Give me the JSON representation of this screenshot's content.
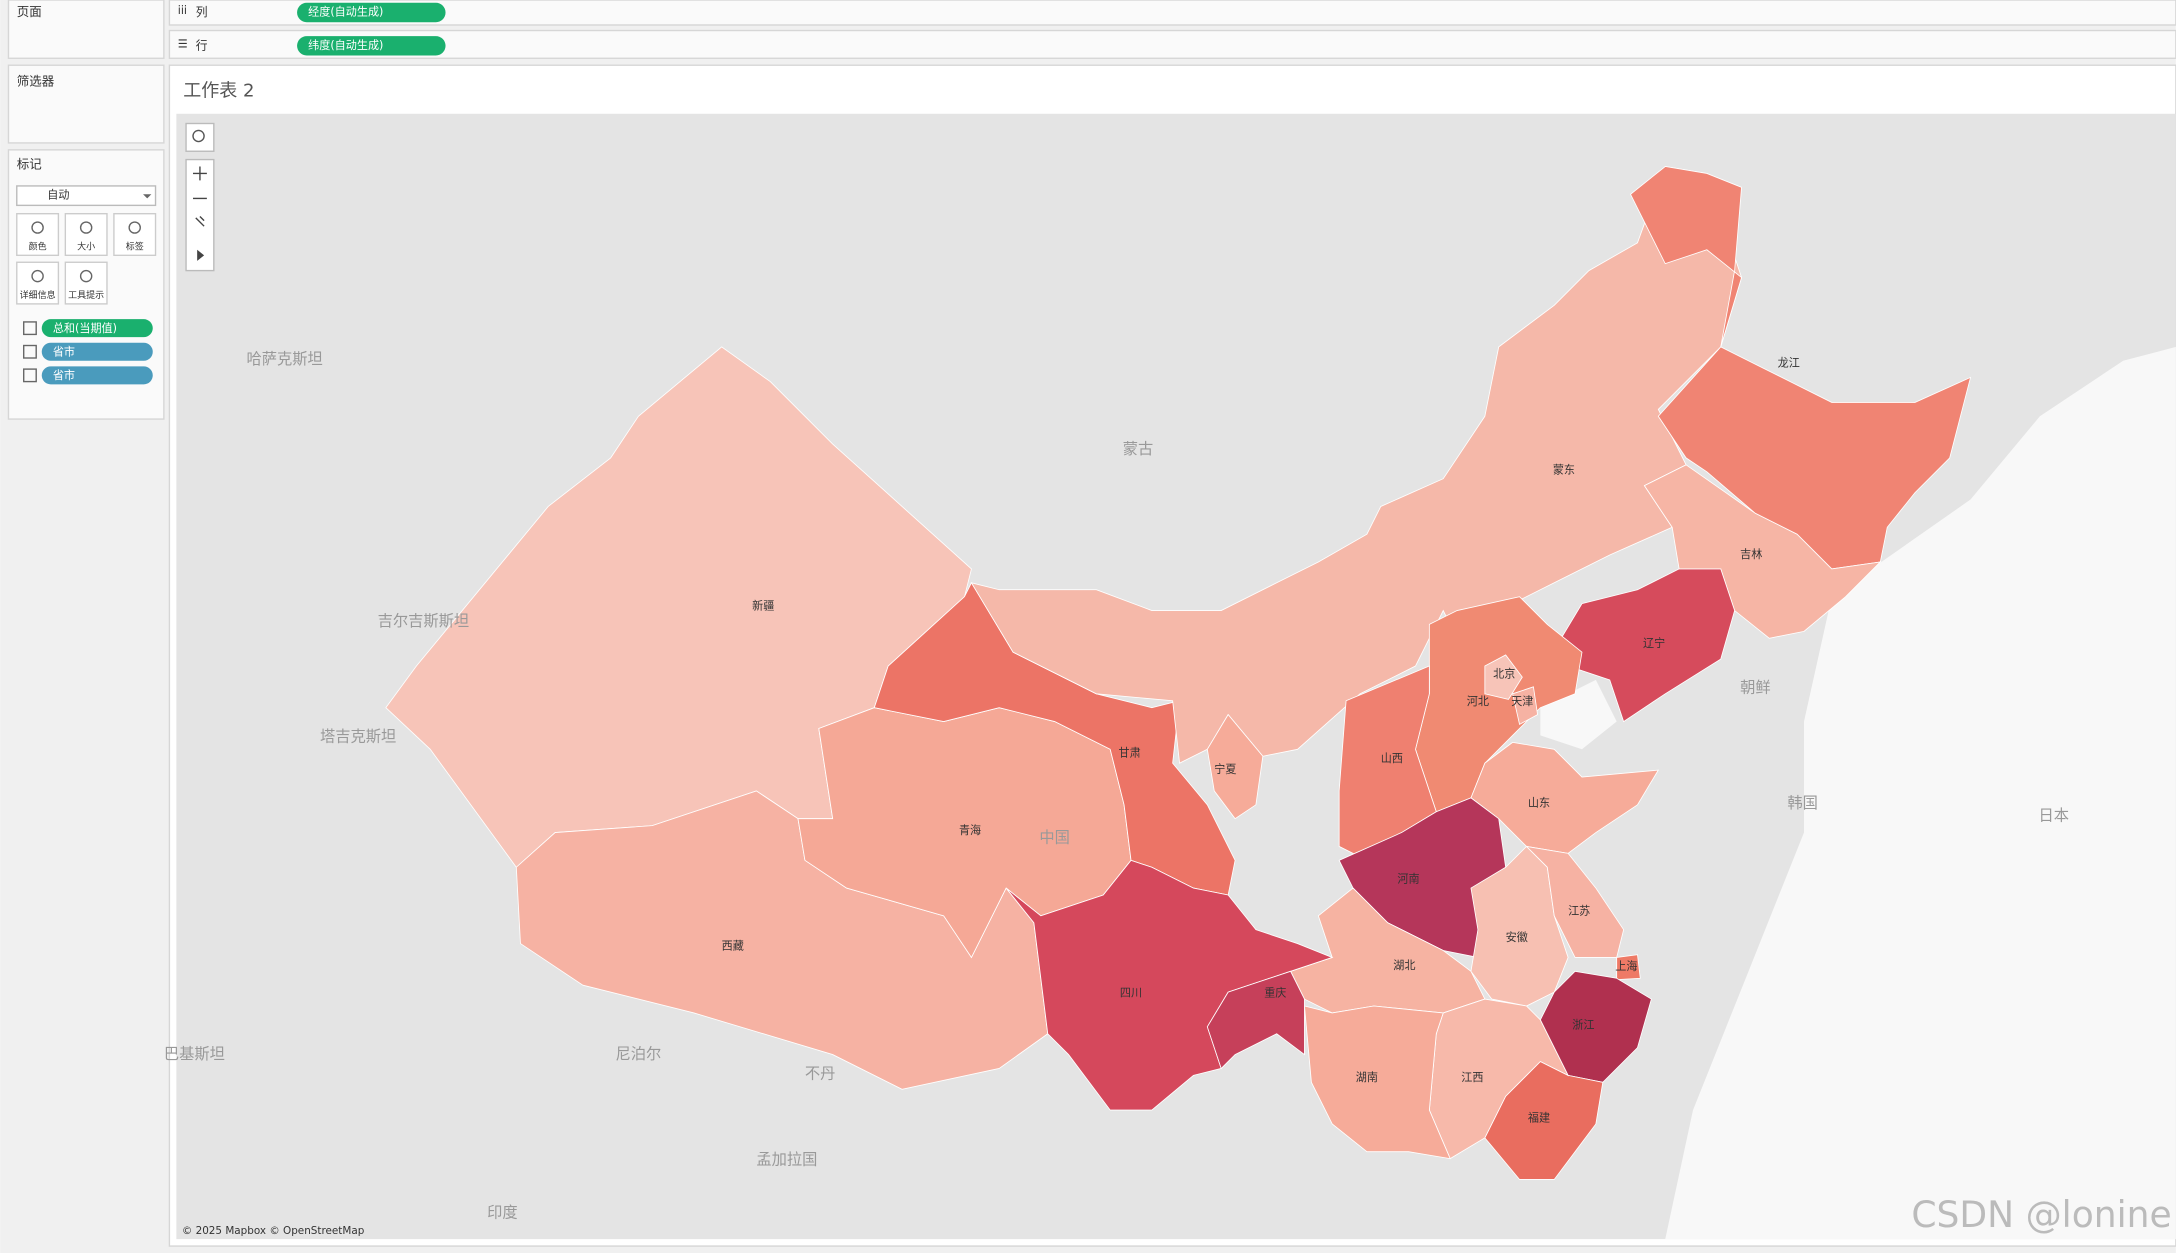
{
  "shelves": {
    "pages": "页面",
    "columns": "列",
    "columns_pill": "经度(自动生成)",
    "rows": "行",
    "rows_pill": "纬度(自动生成)"
  },
  "filters": "筛选器",
  "marks": {
    "title": "标记",
    "mark_type": "自动",
    "buttons": [
      "颜色",
      "大小",
      "标签",
      "详细信息",
      "工具提示"
    ],
    "fields": [
      "总和(当期值)",
      "省市",
      "省市"
    ]
  },
  "sheet": {
    "title": "工作表 2",
    "attribution": "© 2025 Mapbox © OpenStreetMap",
    "watermark": "CSDN @lonine"
  },
  "base_labels": [
    "哈萨克斯坦",
    "蒙古",
    "吉尔吉斯斯坦",
    "塔吉克斯坦",
    "巴基斯坦",
    "中国",
    "尼泊尔",
    "不丹",
    "孟加拉国",
    "印度",
    "朝鲜",
    "韩国",
    "日本"
  ],
  "provinces": [
    {
      "name": "新疆",
      "color": "#f7c4b8"
    },
    {
      "name": "西藏",
      "color": "#f6b2a3"
    },
    {
      "name": "青海",
      "color": "#f5a896"
    },
    {
      "name": "甘肃",
      "color": "#ec7466"
    },
    {
      "name": "蒙东",
      "color": "#f5b8a9"
    },
    {
      "name": "龙江",
      "color": "#f08473"
    },
    {
      "name": "吉林",
      "color": "#f6b5a5"
    },
    {
      "name": "辽宁",
      "color": "#d64b5c"
    },
    {
      "name": "河北",
      "color": "#f08a72"
    },
    {
      "name": "北京",
      "color": "#f7c4b8"
    },
    {
      "name": "天津",
      "color": "#f6b2a3"
    },
    {
      "name": "山西",
      "color": "#ef8070"
    },
    {
      "name": "山东",
      "color": "#f6ab99"
    },
    {
      "name": "河南",
      "color": "#b5365a"
    },
    {
      "name": "湖北",
      "color": "#f6b3a2"
    },
    {
      "name": "安徽",
      "color": "#f7c0b2"
    },
    {
      "name": "江苏",
      "color": "#f6b2a3"
    },
    {
      "name": "上海",
      "color": "#ee7a66"
    },
    {
      "name": "浙江",
      "color": "#b0304f"
    },
    {
      "name": "福建",
      "color": "#e96d5f"
    },
    {
      "name": "江西",
      "color": "#f7b9aa"
    },
    {
      "name": "湖南",
      "color": "#f6ab99"
    },
    {
      "name": "四川",
      "color": "#d5485c"
    },
    {
      "name": "重庆",
      "color": "#c6405a"
    },
    {
      "name": "宁夏",
      "color": "#f6ab99"
    }
  ]
}
